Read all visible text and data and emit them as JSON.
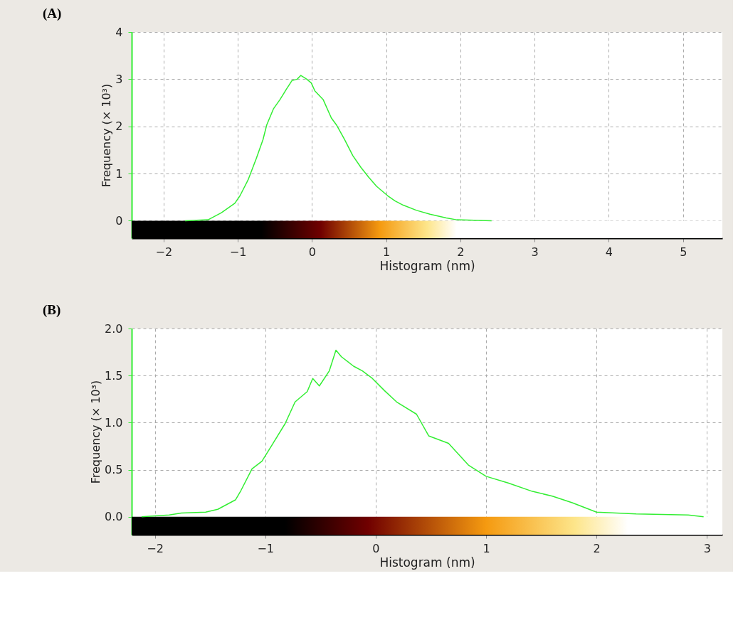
{
  "chart_data": [
    {
      "type": "line",
      "title": "(A)",
      "xlabel": "Histogram (nm)",
      "ylabel": "Frequency (× 10³)",
      "xlim": [
        -2.43,
        5.53
      ],
      "ylim": [
        -0.37,
        4
      ],
      "xticks": [
        -2,
        -1,
        0,
        1,
        2,
        3,
        4,
        5
      ],
      "yticks": [
        0,
        1,
        2,
        3,
        4
      ],
      "grid": true,
      "series": [
        {
          "color": "#33ee33",
          "x": [
            -1.71,
            -1.4,
            -1.22,
            -1.04,
            -0.97,
            -0.86,
            -0.75,
            -0.66,
            -0.61,
            -0.52,
            -0.43,
            -0.34,
            -0.27,
            -0.2,
            -0.15,
            -0.07,
            -0.01,
            0.04,
            0.15,
            0.26,
            0.33,
            0.44,
            0.55,
            0.66,
            0.76,
            0.87,
            1.02,
            1.12,
            1.23,
            1.41,
            1.59,
            1.81,
            1.95,
            2.42
          ],
          "values": [
            0,
            0.02,
            0.17,
            0.37,
            0.53,
            0.87,
            1.32,
            1.72,
            2.03,
            2.37,
            2.57,
            2.8,
            2.97,
            3.0,
            3.08,
            3.0,
            2.92,
            2.75,
            2.57,
            2.18,
            2.03,
            1.72,
            1.38,
            1.13,
            0.93,
            0.73,
            0.53,
            0.42,
            0.33,
            0.22,
            0.14,
            0.06,
            0.02,
            0
          ]
        }
      ]
    },
    {
      "type": "line",
      "title": "(B)",
      "xlabel": "Histogram (nm)",
      "ylabel": "Frequency (× 10³)",
      "xlim": [
        -2.21,
        3.14
      ],
      "ylim": [
        -0.19,
        2
      ],
      "xticks": [
        -2,
        -1,
        0,
        1,
        2,
        3
      ],
      "yticks": [
        {
          "value": 0,
          "label": "0.0"
        },
        0.5,
        {
          "value": 1,
          "label": "1.0"
        },
        1.5,
        {
          "value": 2,
          "label": "2.0"
        }
      ],
      "grid": true,
      "series": [
        {
          "color": "#33ee33",
          "x": [
            -2.12,
            -1.87,
            -1.76,
            -1.54,
            -1.43,
            -1.27,
            -1.22,
            -1.12,
            -1.03,
            -0.93,
            -0.82,
            -0.73,
            -0.62,
            -0.57,
            -0.51,
            -0.42,
            -0.36,
            -0.31,
            -0.2,
            -0.12,
            -0.03,
            0.08,
            0.19,
            0.37,
            0.48,
            0.66,
            0.84,
            1.0,
            1.2,
            1.42,
            1.6,
            1.78,
            2.0,
            2.36,
            2.83,
            2.97
          ],
          "values": [
            0,
            0.02,
            0.04,
            0.05,
            0.08,
            0.18,
            0.28,
            0.51,
            0.59,
            0.78,
            0.99,
            1.22,
            1.33,
            1.47,
            1.39,
            1.55,
            1.77,
            1.7,
            1.6,
            1.55,
            1.47,
            1.34,
            1.22,
            1.09,
            0.86,
            0.78,
            0.55,
            0.43,
            0.36,
            0.27,
            0.22,
            0.15,
            0.05,
            0.03,
            0.02,
            0
          ]
        }
      ]
    }
  ]
}
